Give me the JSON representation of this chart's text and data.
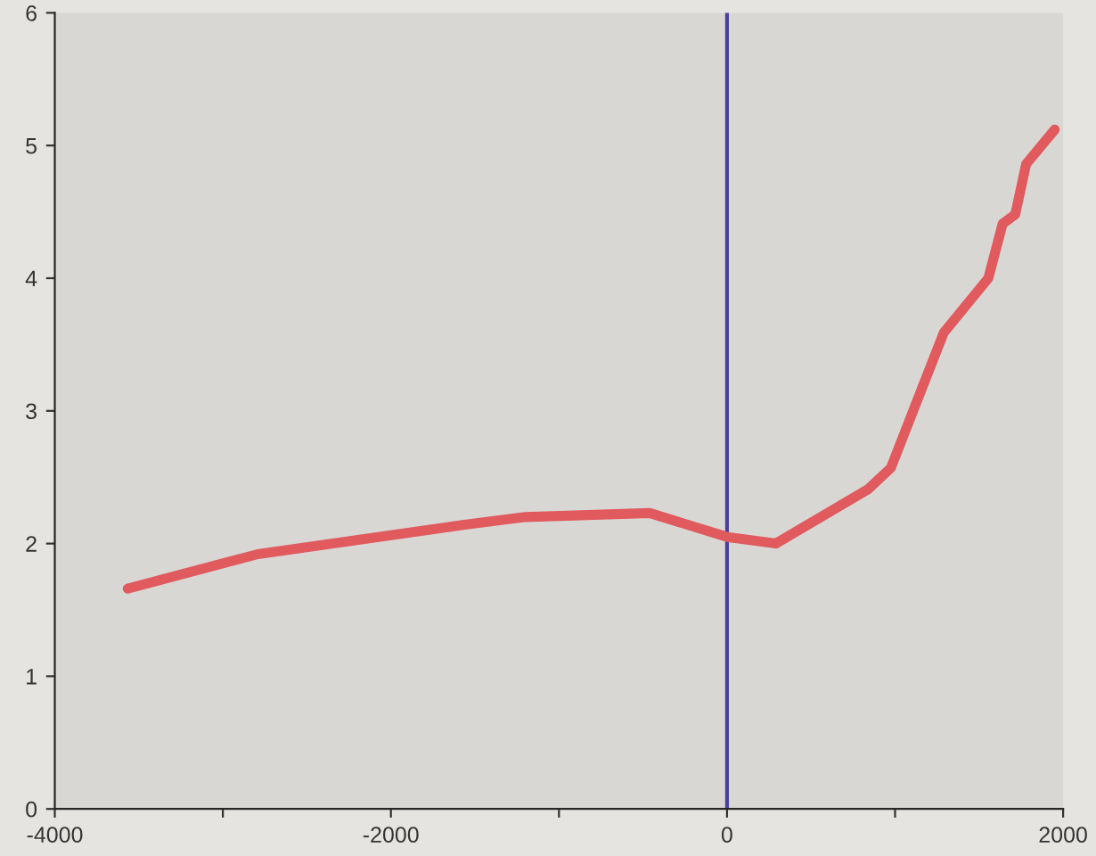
{
  "chart_data": {
    "type": "line",
    "x": [
      -3566,
      -2792,
      -1573,
      -1200,
      -460,
      0,
      290,
      840,
      975,
      1290,
      1555,
      1640,
      1715,
      1780,
      1950
    ],
    "series": [
      {
        "color": "#e05a5e",
        "values": [
          1.66,
          1.92,
          2.14,
          2.2,
          2.23,
          2.05,
          2.0,
          2.41,
          2.57,
          3.59,
          4.0,
          4.41,
          4.48,
          4.86,
          5.12
        ]
      }
    ],
    "xlim": [
      -4000,
      2000
    ],
    "ylim": [
      0,
      6
    ],
    "xticks": [
      -4000,
      {
        "value": -3000,
        "label": null
      },
      -2000,
      {
        "value": -1000,
        "label": null
      },
      0,
      {
        "value": 1000,
        "label": null
      },
      2000
    ],
    "yticks": [
      0,
      1,
      2,
      3,
      4,
      5,
      6
    ],
    "ref_lines": [
      {
        "axis": "x",
        "value": 0,
        "color": "#4a3fa0"
      }
    ],
    "grid": false,
    "legend": false,
    "marker": "none",
    "line_style": "solid"
  }
}
